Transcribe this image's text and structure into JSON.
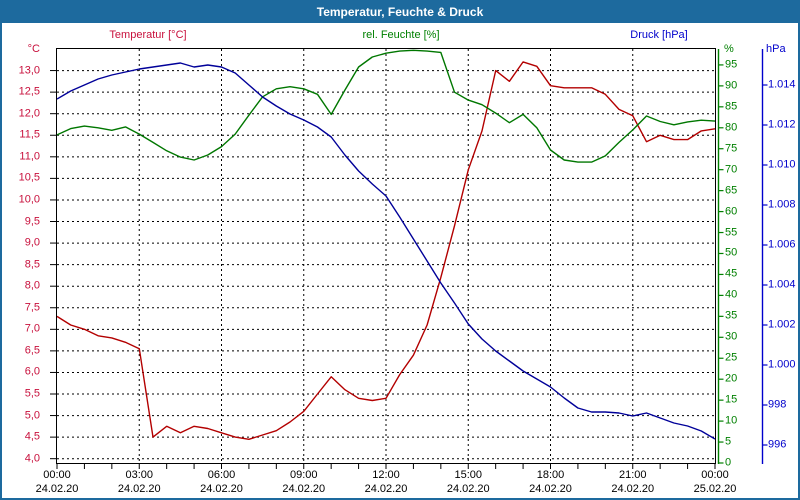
{
  "window": {
    "title": "Temperatur, Feuchte & Druck",
    "frame_color": "#1d6a9e"
  },
  "header": {
    "temp_label": "Temperatur [°C]",
    "hum_label": "rel. Feuchte [%]",
    "press_label": "Druck [hPa]"
  },
  "axes": {
    "temp": {
      "unit": "°C",
      "color": "#c8103c",
      "ticks": [
        "13,0",
        "12,5",
        "12,0",
        "11,5",
        "11,0",
        "10,5",
        "10,0",
        "9,5",
        "9,0",
        "8,5",
        "8,0",
        "7,5",
        "7,0",
        "6,5",
        "6,0",
        "5,5",
        "5,0",
        "4,5",
        "4,0"
      ]
    },
    "hum": {
      "unit": "%",
      "color": "#008000",
      "ticks": [
        "95",
        "90",
        "85",
        "80",
        "75",
        "70",
        "65",
        "60",
        "55",
        "50",
        "45",
        "40",
        "35",
        "30",
        "25",
        "20",
        "15",
        "10",
        "5",
        "0"
      ]
    },
    "press": {
      "unit": "hPa",
      "color": "#0000cc",
      "ticks": [
        "1.014",
        "1.012",
        "1.010",
        "1.008",
        "1.006",
        "1.004",
        "1.002",
        "1.000",
        "998",
        "996"
      ]
    },
    "time": {
      "times": [
        "00:00",
        "03:00",
        "06:00",
        "09:00",
        "12:00",
        "15:00",
        "18:00",
        "21:00",
        "00:00"
      ],
      "dates": [
        "24.02.20",
        "24.02.20",
        "24.02.20",
        "24.02.20",
        "24.02.20",
        "24.02.20",
        "24.02.20",
        "24.02.20",
        "25.02.20"
      ]
    }
  },
  "chart_data": {
    "type": "line",
    "title": "Temperatur, Feuchte & Druck",
    "x_unit": "hours",
    "x_range": [
      0,
      24
    ],
    "x_step": 0.5,
    "x_tick_labels": [
      "00:00",
      "03:00",
      "06:00",
      "09:00",
      "12:00",
      "15:00",
      "18:00",
      "21:00",
      "00:00"
    ],
    "grid": true,
    "grid_style": "dashed-black",
    "legend_position": "top",
    "series": [
      {
        "name": "Temperatur",
        "unit": "°C",
        "color": "#b30000",
        "axis": "temp",
        "ylim": [
          3.9,
          13.5
        ],
        "values": [
          7.3,
          7.1,
          7.0,
          6.85,
          6.8,
          6.7,
          6.55,
          4.5,
          4.75,
          4.6,
          4.75,
          4.7,
          4.6,
          4.5,
          4.45,
          4.55,
          4.65,
          4.85,
          5.1,
          5.5,
          5.9,
          5.6,
          5.4,
          5.35,
          5.4,
          5.95,
          6.4,
          7.1,
          8.2,
          9.4,
          10.7,
          11.6,
          13.0,
          12.75,
          13.2,
          13.1,
          12.65,
          12.6,
          12.6,
          12.6,
          12.45,
          12.1,
          11.95,
          11.35,
          11.5,
          11.4,
          11.4,
          11.6,
          11.65
        ]
      },
      {
        "name": "rel. Feuchte",
        "unit": "%",
        "color": "#007700",
        "axis": "hum",
        "ylim": [
          0,
          98.8
        ],
        "values": [
          78.3,
          79.8,
          80.4,
          80.0,
          79.4,
          80.2,
          78.5,
          76.5,
          74.5,
          73.0,
          72.3,
          73.5,
          75.5,
          78.5,
          83.0,
          87.4,
          89.3,
          89.8,
          89.3,
          88.0,
          83.2,
          89.0,
          94.5,
          96.9,
          97.8,
          98.3,
          98.5,
          98.3,
          98.0,
          88.5,
          86.6,
          85.5,
          83.5,
          81.2,
          83.2,
          80.0,
          74.7,
          72.3,
          71.8,
          71.8,
          73.3,
          76.5,
          79.5,
          82.8,
          81.5,
          80.7,
          81.4,
          81.8,
          81.6
        ]
      },
      {
        "name": "Druck",
        "unit": "hPa",
        "color": "#000099",
        "axis": "press",
        "ylim": [
          995.1,
          1015.8
        ],
        "values": [
          1013.3,
          1013.7,
          1014.0,
          1014.3,
          1014.5,
          1014.65,
          1014.8,
          1014.9,
          1015.0,
          1015.1,
          1014.9,
          1015.0,
          1014.9,
          1014.6,
          1014.0,
          1013.4,
          1012.95,
          1012.55,
          1012.25,
          1011.9,
          1011.4,
          1010.5,
          1009.7,
          1009.05,
          1008.45,
          1007.4,
          1006.3,
          1005.2,
          1004.1,
          1003.1,
          1002.05,
          1001.3,
          1000.7,
          1000.2,
          999.7,
          999.3,
          998.9,
          998.35,
          997.85,
          997.65,
          997.65,
          997.6,
          997.45,
          997.6,
          997.35,
          997.1,
          996.95,
          996.7,
          996.3
        ]
      }
    ]
  }
}
